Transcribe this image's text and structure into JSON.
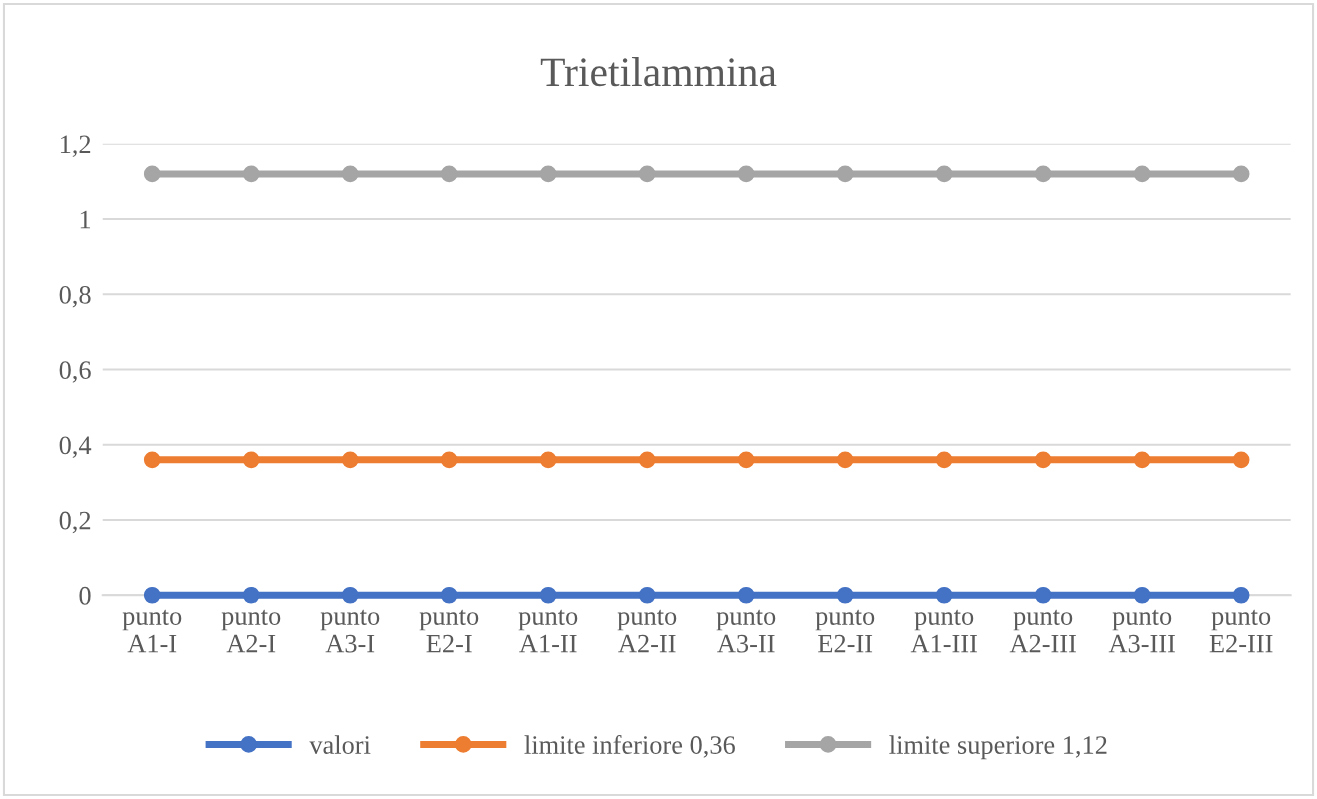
{
  "chart_data": {
    "type": "line",
    "title": "Trietilammina",
    "categories": [
      "punto A1-I",
      "punto A2-I",
      "punto A3-I",
      "punto E2-I",
      "punto A1-II",
      "punto A2-II",
      "punto A3-II",
      "punto E2-II",
      "punto A1-III",
      "punto A2-III",
      "punto A3-III",
      "punto E2-III"
    ],
    "series": [
      {
        "name": "valori",
        "color": "#4472c4",
        "values": [
          0,
          0,
          0,
          0,
          0,
          0,
          0,
          0,
          0,
          0,
          0,
          0
        ]
      },
      {
        "name": "limite inferiore 0,36",
        "color": "#ed7d31",
        "values": [
          0.36,
          0.36,
          0.36,
          0.36,
          0.36,
          0.36,
          0.36,
          0.36,
          0.36,
          0.36,
          0.36,
          0.36
        ]
      },
      {
        "name": "limite superiore 1,12",
        "color": "#a5a5a5",
        "values": [
          1.12,
          1.12,
          1.12,
          1.12,
          1.12,
          1.12,
          1.12,
          1.12,
          1.12,
          1.12,
          1.12,
          1.12
        ]
      }
    ],
    "ylim": [
      0,
      1.2
    ],
    "yticks": [
      0,
      {
        "value": 0.2,
        "label": "0,2"
      },
      {
        "value": 0.4,
        "label": "0,4"
      },
      {
        "value": 0.6,
        "label": "0,6"
      },
      {
        "value": 0.8,
        "label": "0,8"
      },
      1,
      {
        "value": 1.2,
        "label": "1,2"
      }
    ],
    "grid": "y",
    "legend": "bottom",
    "marker": "circle",
    "line_style": "solid"
  }
}
